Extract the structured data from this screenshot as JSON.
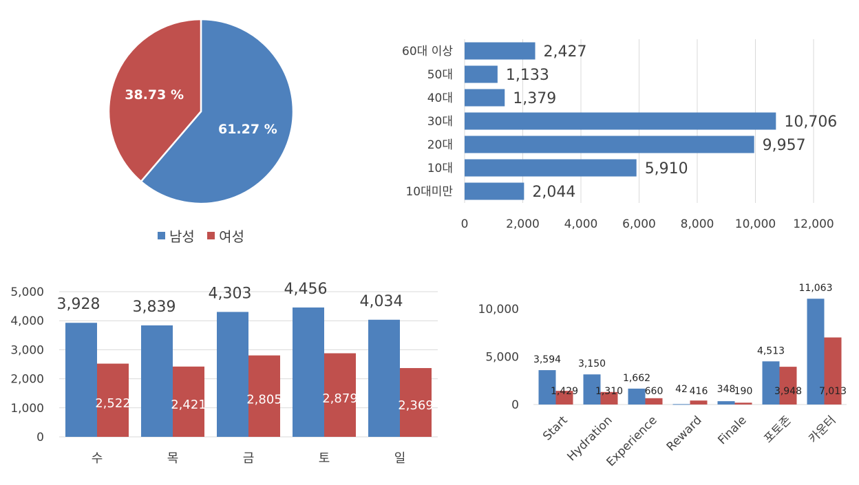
{
  "colors": {
    "blue": "#4e81bd",
    "red": "#c0504d",
    "grid": "#d9d9d9",
    "text": "#404040"
  },
  "chart_data": [
    {
      "type": "pie",
      "legend_position": "bottom",
      "slices": [
        {
          "name": "남성",
          "value": 61.27,
          "label": "61.27 %",
          "color": "#4e81bd"
        },
        {
          "name": "여성",
          "value": 38.73,
          "label": "38.73 %",
          "color": "#c0504d"
        }
      ]
    },
    {
      "type": "bar",
      "orientation": "horizontal",
      "categories": [
        "60대 이상",
        "50대",
        "40대",
        "30대",
        "20대",
        "10대",
        "10대미만"
      ],
      "values": [
        2427,
        1133,
        1379,
        10706,
        9957,
        5910,
        2044
      ],
      "value_labels": [
        "2,427",
        "1,133",
        "1,379",
        "10,706",
        "9,957",
        "5,910",
        "2,044"
      ],
      "xlim": [
        0,
        12000
      ],
      "ticks": [
        "0",
        "2,000",
        "4,000",
        "6,000",
        "8,000",
        "10,000",
        "12,000"
      ],
      "grid": true
    },
    {
      "type": "bar",
      "categories": [
        "수",
        "목",
        "금",
        "토",
        "일"
      ],
      "series": [
        {
          "values": [
            3928,
            3839,
            4303,
            4456,
            4034
          ],
          "labels": [
            "3,928",
            "3,839",
            "4,303",
            "4,456",
            "4,034"
          ],
          "color": "#4e81bd"
        },
        {
          "values": [
            2522,
            2421,
            2805,
            2879,
            2369
          ],
          "labels": [
            "2,522",
            "2,421",
            "2,805",
            "2,879",
            "2,369"
          ],
          "color": "#c0504d"
        }
      ],
      "ylim": [
        0,
        5000
      ],
      "ticks": [
        "0",
        "1,000",
        "2,000",
        "3,000",
        "4,000",
        "5,000"
      ],
      "grid": true
    },
    {
      "type": "bar",
      "categories": [
        "Start",
        "Hydration",
        "Experience",
        "Reward",
        "Finale",
        "포토존",
        "카운터"
      ],
      "series": [
        {
          "values": [
            3594,
            3150,
            1662,
            42,
            348,
            4513,
            11063
          ],
          "labels": [
            "3,594",
            "3,150",
            "1,662",
            "42",
            "348",
            "4,513",
            "11,063"
          ],
          "color": "#4e81bd"
        },
        {
          "values": [
            1429,
            1310,
            660,
            416,
            190,
            3948,
            7013
          ],
          "labels": [
            "1,429",
            "1,310",
            "660",
            "416",
            "190",
            "3,948",
            "7,013"
          ],
          "color": "#c0504d"
        }
      ],
      "ylim": [
        0,
        11500
      ],
      "ticks": [
        "0",
        "5,000",
        "10,000"
      ],
      "grid": false
    }
  ]
}
